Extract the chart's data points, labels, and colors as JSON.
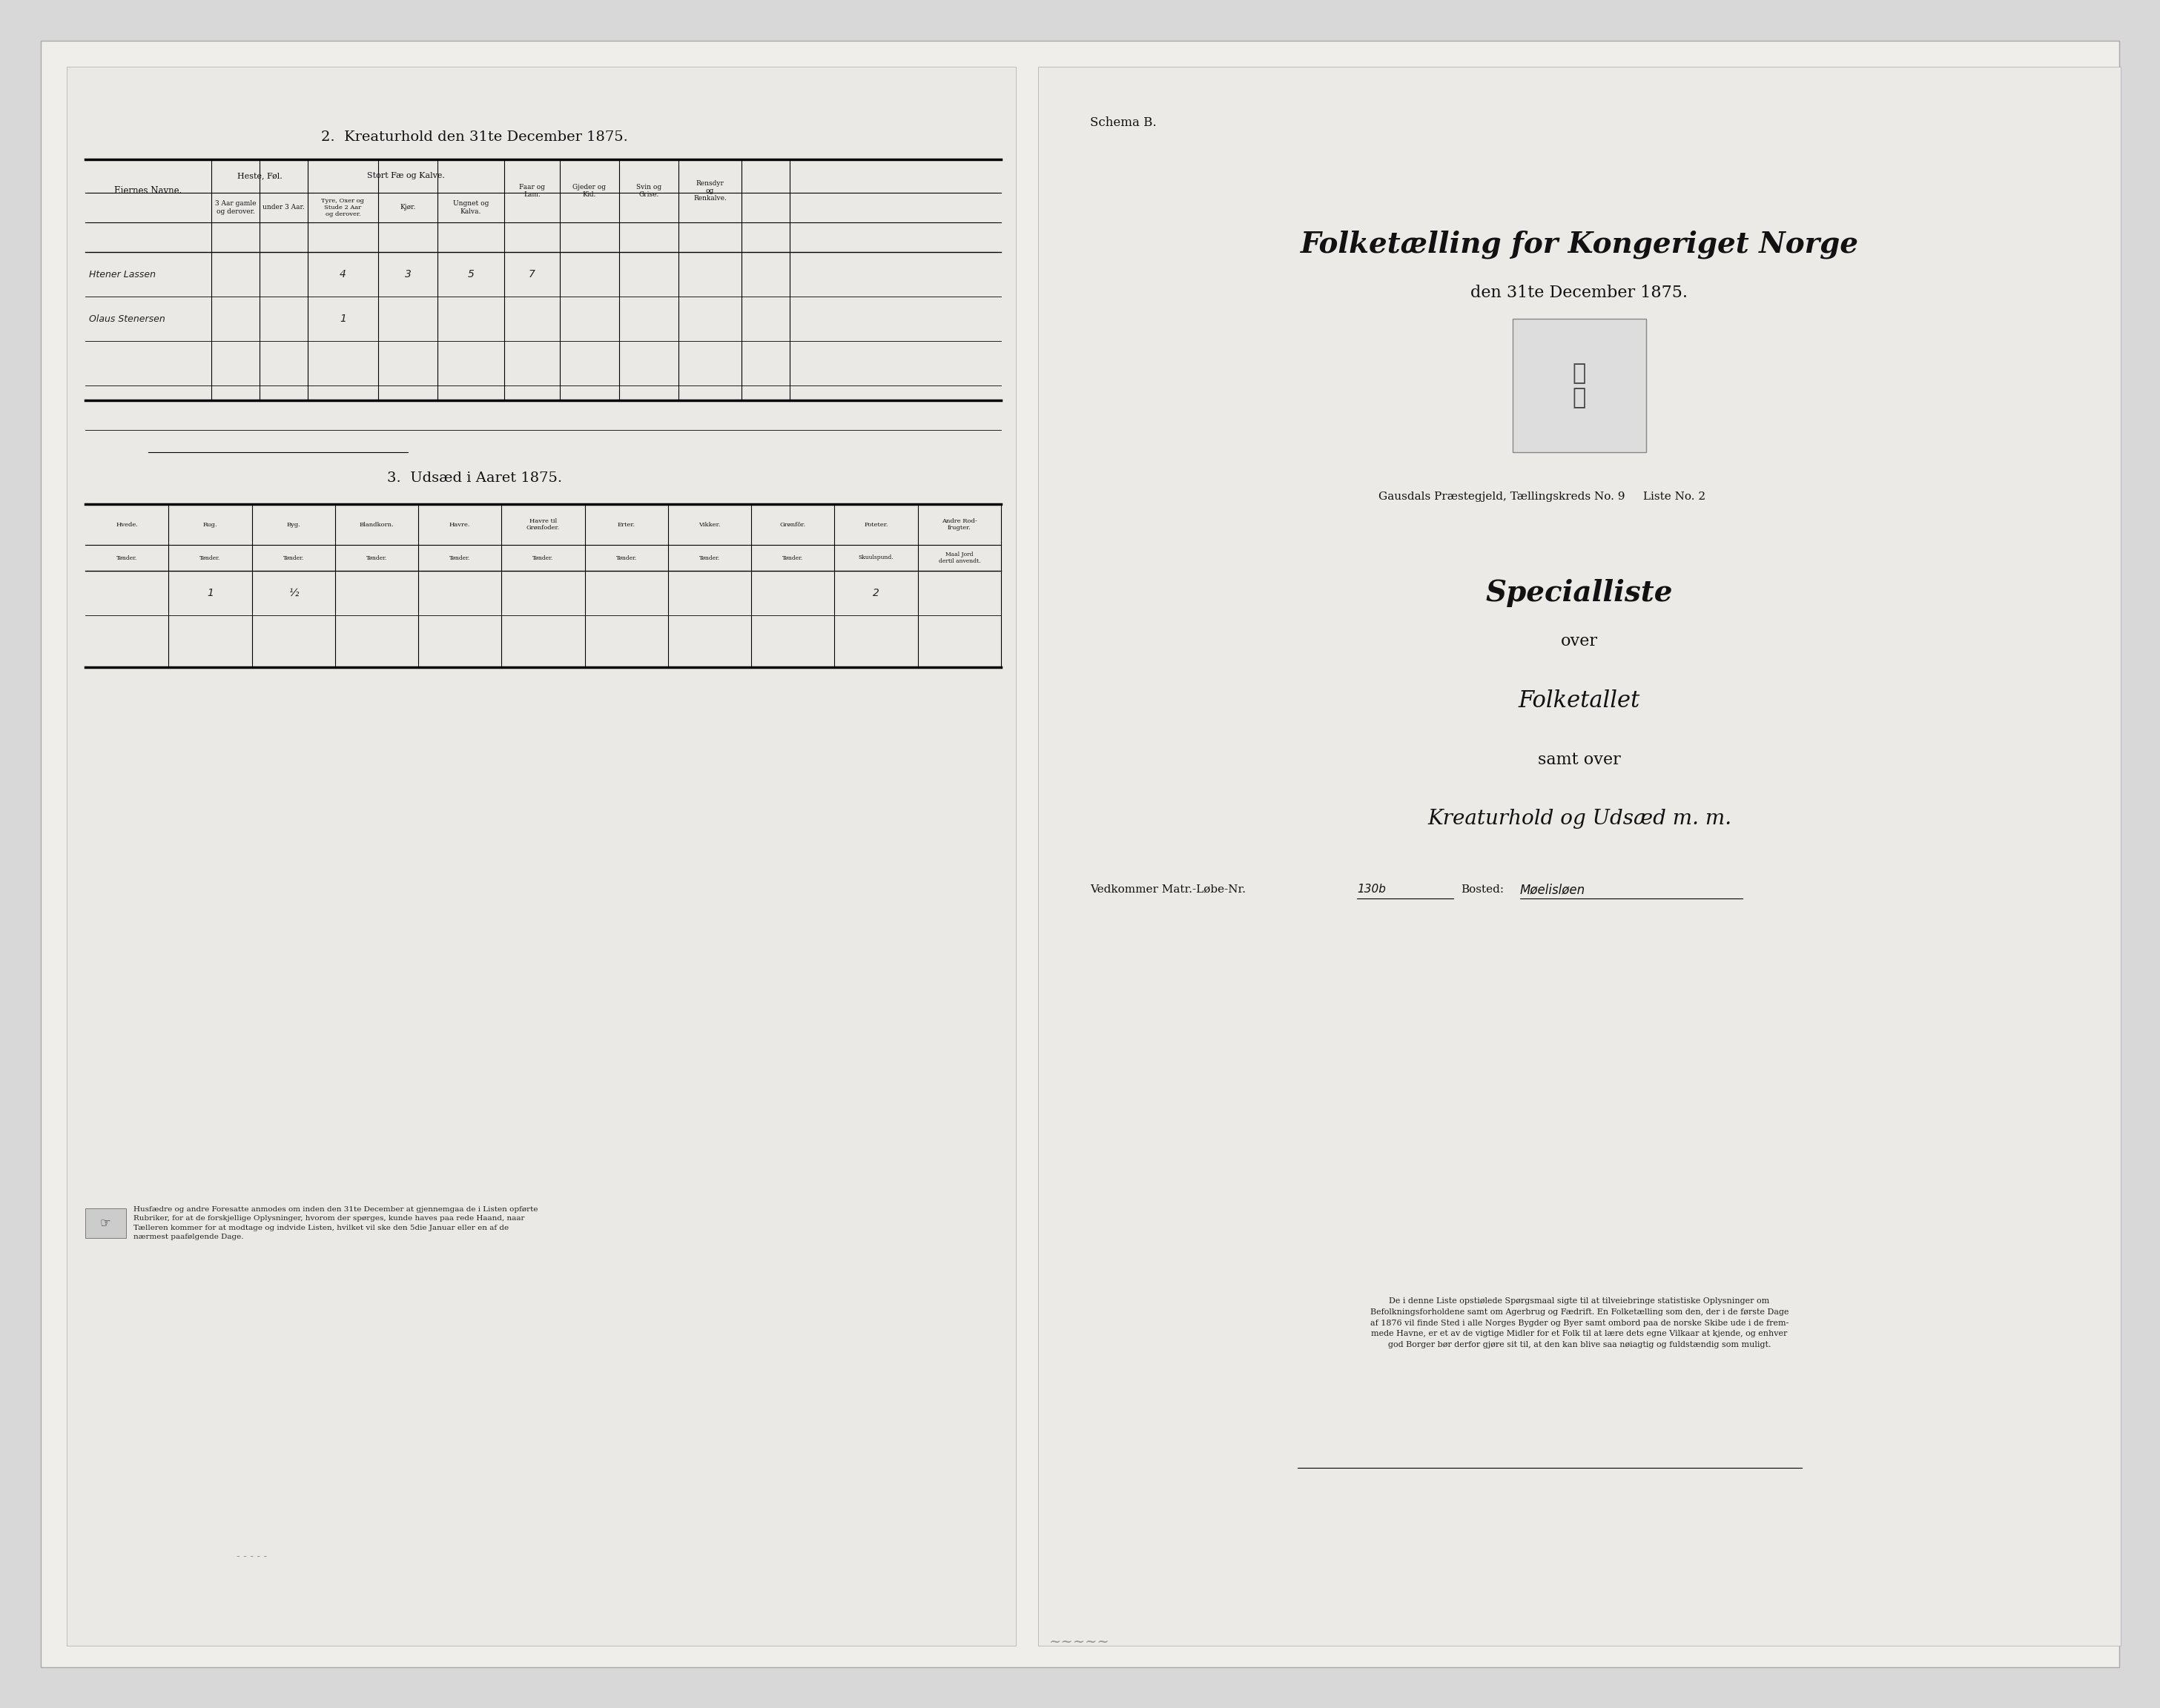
{
  "bg_color": "#d8d8d8",
  "paper_color": "#f0eeeb",
  "left_page_bg": "#ebe9e6",
  "right_page_bg": "#eceae7",
  "title_section2": "2.  Kreaturhold den 31te December 1875.",
  "title_section3": "3.  Udsæd i Aaret 1875.",
  "schema_b": "Schema B.",
  "main_title_line1": "Folketælling for Kongeriget Norge",
  "main_title_line2": "den 31te December 1875.",
  "sub_title1": "Specialliste",
  "sub_title2": "over",
  "sub_title3": "Folketallet",
  "sub_title4": "samt over",
  "sub_title5": "Kreaturhold og Udsæd m. m.",
  "matr_label": "Vedkommer Matr.-Løbe-Nr.",
  "matr_value": "130",
  "bosted_label": "Bosted:",
  "bosted_value": "Møelisløen",
  "gausdals_text": "Gausdals Præstegjeld, Tællingskreds No. 9     Liste No. 2",
  "col_headers_kreatur": [
    "Eiernes Navne.",
    "Heste, Føl.",
    "Stort Fæ og Kalve.",
    "Faar og\nLam.",
    "Gjeder og\nKid.",
    "Svin og\nGrise.",
    "Rensdyr\nog\nRenkalve."
  ],
  "sub_headers_heste": [
    "3 Aar gamle\nog derover.",
    "under 3 Aar."
  ],
  "sub_headers_stort": [
    "Tyre, Oxer og\nStude 2 Aar\nog derover.",
    "Kjør.",
    "Ungnet og\nKalva."
  ],
  "rows_kreatur": [
    [
      "Htener Lassen",
      "",
      "",
      "4",
      "3",
      "5",
      "7",
      "",
      ""
    ],
    [
      "Olaus Stenersen",
      "",
      "",
      "1",
      "",
      "",
      "",
      "",
      ""
    ],
    [
      "",
      "",
      "",
      "",
      "",
      "",
      "",
      "",
      ""
    ],
    [
      "",
      "",
      "",
      "",
      "",
      "",
      "",
      "",
      ""
    ],
    [
      "",
      "",
      "",
      "",
      "",
      "",
      "",
      "",
      ""
    ]
  ],
  "col_headers_udsaed": [
    "Hvede.\nTønder.",
    "Rug.\nTønder.",
    "Byg.\nTønder.",
    "Blandkorn.\nTønder.",
    "Havre.\nTønder.",
    "Havre til\nGrønfoder.\nTønder.",
    "Erter.\nTønder.",
    "Vikker.\nTønder.",
    "Grønfôr.\nTønder.",
    "Poteter.\nSkuulspund.",
    "Andre Rod-\nfrugter.\nMaal Jord\ndertil anvendt."
  ],
  "rows_udsaed": [
    [
      "",
      "1",
      "½",
      "",
      "",
      "",
      "",
      "",
      "",
      "2",
      ""
    ],
    [
      "",
      "",
      "",
      "",
      "",
      "",
      "",
      "",
      "",
      "",
      ""
    ]
  ],
  "footnote_left": "Husfædre og andre Foresatte anmodes om inden den 31te December at gjennemgaa de i Listen opførte\nRubriker, for at de forskjellige Oplysninger, hvorom der spørges, kunde haves paa rede Haand, naar\nTælleren kommer for at modtage og indvide Listen, hvilket vil ske den 5die Januar eller en af de\nnærmest paafølgende Dage.",
  "footnote_right": "De i denne Liste opstiølede Spørgsmaal sigte til at tilveiebringe statistiske Oplysninger om\nBefolkningsforholdene samt om Agerbrug og Fædrift. En Folketælling som den, der i de første Dage\naf 1876 vil finde Sted i alle Norges Bygder og Byer samt ombord paa de norske Skibe ude i de frem-\nmede Havne, er et av de vigtige Midler for et Folk til at lære dets egne Vilkaar at kjende, og enhver\ngod Borger bør derfor gjøre sit til, at den kan blive saa nøiagtig og fuldstændig som muligt."
}
